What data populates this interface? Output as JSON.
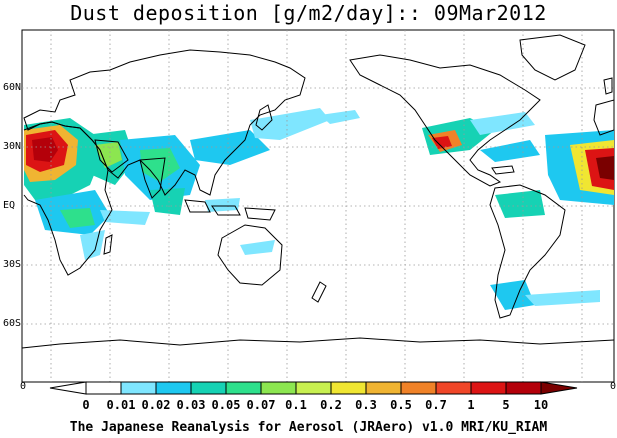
{
  "title": "Dust deposition [g/m2/day]:: 09Mar2012",
  "lat_labels": {
    "n60": "60N",
    "n30": "30N",
    "eq": "EQ",
    "s30": "30S",
    "s60": "60S"
  },
  "edge_labels": {
    "left": "0",
    "right": "0"
  },
  "colorbar": {
    "ticks": [
      "0",
      "0.01",
      "0.02",
      "0.03",
      "0.05",
      "0.07",
      "0.1",
      "0.2",
      "0.3",
      "0.5",
      "0.7",
      "1",
      "5",
      "10"
    ],
    "colors": [
      "#ffffff",
      "#7fe6ff",
      "#1ec8f0",
      "#16d2b4",
      "#2ee08c",
      "#8ce650",
      "#c8f050",
      "#f0e632",
      "#f0b432",
      "#f08228",
      "#f04628",
      "#dc1414",
      "#b4000a",
      "#7a0000"
    ]
  },
  "footer": "The Japanese Reanalysis for Aerosol (JRAero) v1.0 MRI/KU_RIAM",
  "colors": {
    "map_border": "#000000",
    "gridline": "#9a9a9a",
    "coast": "#000000"
  }
}
